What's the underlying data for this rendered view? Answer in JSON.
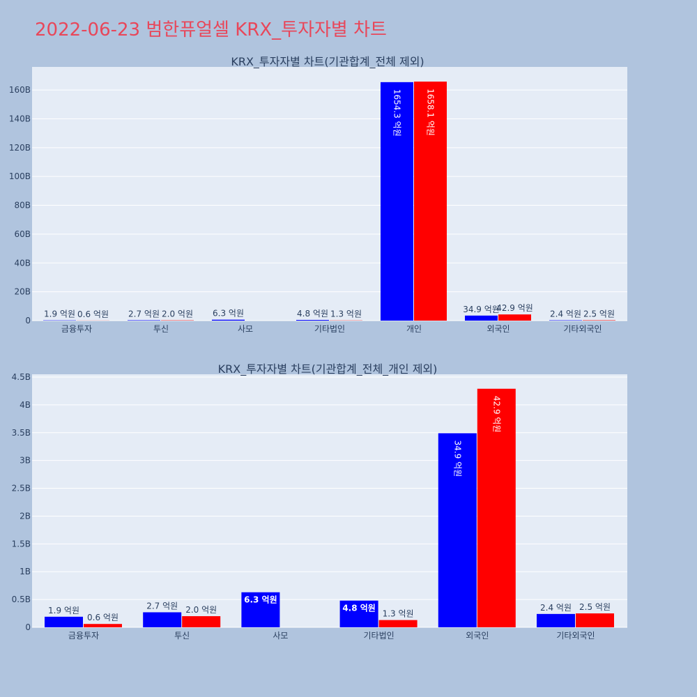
{
  "page": {
    "title": "2022-06-23 범한퓨얼셀 KRX_투자자별 차트"
  },
  "chart_data": [
    {
      "type": "bar",
      "title": "KRX_투자자별 차트(기관합계_전체 제외)",
      "categories": [
        "금융투자",
        "투신",
        "사모",
        "기타법인",
        "개인",
        "외국인",
        "기타외국인"
      ],
      "ylim": [
        0,
        176000000000
      ],
      "yticks": [
        0,
        20000000000,
        40000000000,
        60000000000,
        80000000000,
        100000000000,
        120000000000,
        140000000000,
        160000000000
      ],
      "ytick_labels": [
        "0",
        "20B",
        "40B",
        "60B",
        "80B",
        "100B",
        "120B",
        "140B",
        "160B"
      ],
      "grid": true,
      "colors": [
        "#0000ff",
        "#ff0000"
      ],
      "series": [
        {
          "values": [
            190000000,
            270000000,
            630000000,
            480000000,
            165430000000,
            3490000000,
            240000000
          ],
          "labels": [
            "1.9 억원",
            "2.7 억원",
            "6.3 억원",
            "4.8 억원",
            "1654.3 억원",
            "34.9 억원",
            "2.4 억원"
          ]
        },
        {
          "values": [
            60000000,
            200000000,
            0,
            130000000,
            165810000000,
            4290000000,
            250000000
          ],
          "labels": [
            "0.6 억원",
            "2.0 억원",
            "",
            "1.3 억원",
            "1658.1 억원",
            "42.9 억원",
            "2.5 억원"
          ]
        }
      ]
    },
    {
      "type": "bar",
      "title": "KRX_투자자별 차트(기관합계_전체_개인 제외)",
      "categories": [
        "금융투자",
        "투신",
        "사모",
        "기타법인",
        "외국인",
        "기타외국인"
      ],
      "ylim": [
        0,
        4550000000
      ],
      "yticks": [
        0,
        500000000,
        1000000000,
        1500000000,
        2000000000,
        2500000000,
        3000000000,
        3500000000,
        4000000000,
        4500000000
      ],
      "ytick_labels": [
        "0",
        "0.5B",
        "1B",
        "1.5B",
        "2B",
        "2.5B",
        "3B",
        "3.5B",
        "4B",
        "4.5B"
      ],
      "grid": true,
      "colors": [
        "#0000ff",
        "#ff0000"
      ],
      "series": [
        {
          "values": [
            190000000,
            270000000,
            630000000,
            480000000,
            3490000000,
            240000000
          ],
          "labels": [
            "1.9 억원",
            "2.7 억원",
            "6.3 억원",
            "4.8 억원",
            "34.9 억원",
            "2.4 억원"
          ]
        },
        {
          "values": [
            60000000,
            200000000,
            0,
            130000000,
            4290000000,
            250000000
          ],
          "labels": [
            "0.6 억원",
            "2.0 억원",
            "",
            "1.3 억원",
            "42.9 억원",
            "2.5 억원"
          ]
        }
      ]
    }
  ]
}
